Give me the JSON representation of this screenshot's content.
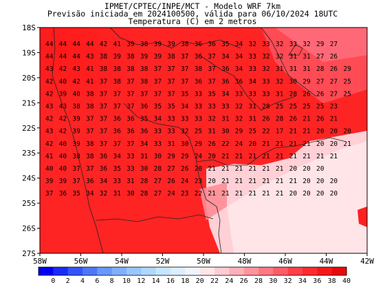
{
  "header": {
    "line1": "IPMET/CPTEC/INPE/MCT - Modelo WRF 7km",
    "line2": "Previsão iniciada em 2024100500, válida para 06/10/2024 18UTC",
    "line3": "Temperatura (C) em 2 metros"
  },
  "axes": {
    "lat_labels": [
      "18S",
      "19S",
      "20S",
      "21S",
      "22S",
      "23S",
      "24S",
      "25S",
      "26S",
      "27S"
    ],
    "lon_labels": [
      "58W",
      "56W",
      "54W",
      "52W",
      "50W",
      "48W",
      "46W",
      "44W",
      "42W"
    ]
  },
  "colorbar": {
    "ticks": [
      "0",
      "2",
      "4",
      "6",
      "8",
      "10",
      "12",
      "14",
      "16",
      "18",
      "20",
      "22",
      "24",
      "26",
      "28",
      "30",
      "32",
      "34",
      "36",
      "38",
      "40"
    ],
    "colors": [
      "#0000f0",
      "#1a2af5",
      "#3355f8",
      "#4d77fa",
      "#6699fc",
      "#80b0fd",
      "#99c6fe",
      "#b0d8ff",
      "#c8e6ff",
      "#dceeff",
      "#f0f4ff",
      "#ffe6ea",
      "#ffccd2",
      "#ffb0b8",
      "#ff949e",
      "#ff7882",
      "#ff5c66",
      "#ff404a",
      "#ff2a30",
      "#f51818",
      "#e80a0a"
    ]
  },
  "grid": {
    "rows": [
      "44 44 44 44 42 41 39 38 39 39 38 36 36 35 34 32 33 32 33 32 29 27",
      "44 44 44 43 38 39 38 39 39 38 37 36 37 34 34 33 32 32 31 31 27 26",
      "43 42 43 41 38 38 38 38 37 37 37 38 37 36 34 33 32 31 31 31 28 26 29",
      "42 40 42 41 37 38 37 38 37 37 37 36 37 36 36 34 33 32 30 29 27 27 25",
      "42 39 40 38 37 37 37 37 37 37 35 33 35 34 33 33 33 31 28 26 26 27 25",
      "43 43 38 38 37 37 37 36 35 35 34 33 33 33 32 31 28 25 25 25 25 23",
      "42 42 39 37 37 36 36 35 34 33 33 33 32 31 32 31 26 28 26 21 26 21",
      "43 42 39 37 37 36 36 36 33 33 32 25 31 30 29 25 22 17 21 21 20 20 20",
      "42 40 39 38 37 37 37 34 33 31 30 29 26 22 24 20 21 21 21 21 20 20 21",
      "41 40 38 38 36 34 33 31 30 29 29 24 20 21 21 21 21 21 21 21 21 21",
      "40 40 37 37 36 35 33 30 28 27 26 20 21 21 21 21 21 21 20 20 20",
      "39 39 37 36 34 33 31 28 27 26 24 23 20 21 21 21 21 21 21 20 20 20",
      "37 36 35 34 32 31 30 28 27 24 23 22 21 21 21 21 21 21 20 20 20 20"
    ]
  }
}
